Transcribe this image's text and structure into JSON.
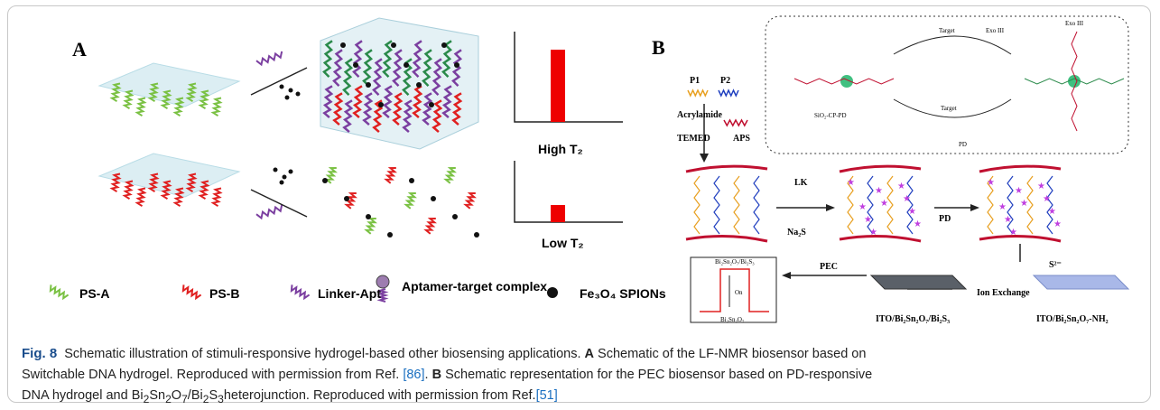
{
  "panel_a": {
    "label": "A",
    "high": "High T₂",
    "low": "Low T₂",
    "legend": [
      "PS-A",
      "PS-B",
      "Linker-Apt",
      "Aptamer-target complex",
      "Fe₃O₄ SPIONs"
    ]
  },
  "panel_b": {
    "label": "B",
    "p1": "P1",
    "p2": "P2",
    "acrylamide": "Acrylamide",
    "temed": "TEMED",
    "aps": "APS",
    "lk": "LK",
    "na2s": "Na₂S",
    "pd": "PD",
    "target_top": "Target",
    "exo_top": "Exo III",
    "exo_right": "Exo III",
    "probe": "SiO₂-CP-PD",
    "target_bottom": "Target",
    "pd_release": "PD",
    "s2": "S²⁻",
    "ion_exchange": "Ion Exchange",
    "pec": "PEC",
    "ito_nh2": "ITO/Bi₂Sn₂O₇-NH₂",
    "ito_bi2s3": "ITO/Bi₂Sn₂O₇/Bi₂S₃",
    "plot_top": "Bi₂Sn₂O₇/Bi₂S₃",
    "plot_bottom": "Bi₂Sn₂O₇",
    "plot_axis": "On"
  },
  "caption": {
    "label": "Fig. 8",
    "text": [
      "Schematic illustration of stimuli-responsive hydrogel-based other biosensing applications.",
      "A",
      "Schematic of the LF-NMR biosensor based on",
      "Switchable DNA hydrogel. Reproduced with permission from Ref.",
      "[86]",
      ".",
      "B",
      "Schematic representation for the PEC biosensor based on PD-responsive",
      "DNA hydrogel and Bi",
      "2",
      "Sn",
      "2",
      "O",
      "7",
      "/Bi",
      "2",
      "S",
      "3",
      "heterojunction. Reproduced with permission from Ref.",
      "[51]"
    ]
  }
}
